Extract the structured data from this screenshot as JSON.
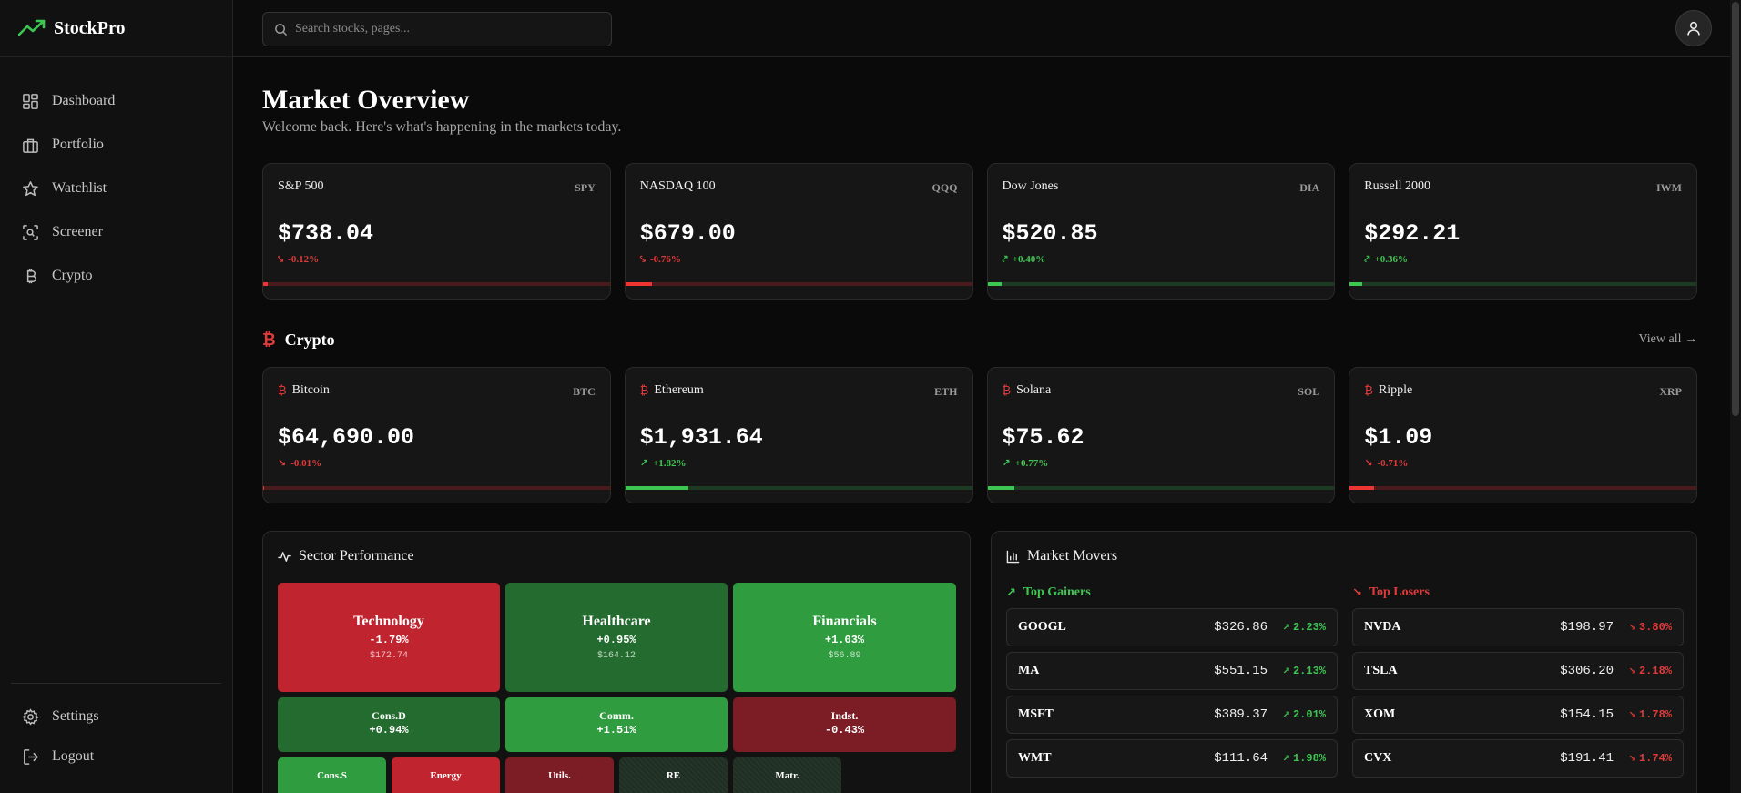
{
  "brand": {
    "name": "StockPro",
    "accent": "#3ec653"
  },
  "sidebar": {
    "items": [
      {
        "label": "Dashboard",
        "icon": "dashboard-icon"
      },
      {
        "label": "Portfolio",
        "icon": "briefcase-icon"
      },
      {
        "label": "Watchlist",
        "icon": "star-icon"
      },
      {
        "label": "Screener",
        "icon": "scan-icon"
      },
      {
        "label": "Crypto",
        "icon": "bitcoin-icon"
      }
    ],
    "bottom": [
      {
        "label": "Settings",
        "icon": "gear-icon"
      },
      {
        "label": "Logout",
        "icon": "logout-icon"
      }
    ]
  },
  "search": {
    "placeholder": "Search stocks, pages..."
  },
  "page": {
    "title": "Market Overview",
    "subtitle": "Welcome back. Here's what's happening in the markets today."
  },
  "indices": [
    {
      "name": "S&P 500",
      "symbol": "SPY",
      "price": "$738.04",
      "change": "-0.12%",
      "direction": "down",
      "bar_level": 0.012
    },
    {
      "name": "NASDAQ 100",
      "symbol": "QQQ",
      "price": "$679.00",
      "change": "-0.76%",
      "direction": "down",
      "bar_level": 0.076
    },
    {
      "name": "Dow Jones",
      "symbol": "DIA",
      "price": "$520.85",
      "change": "+0.40%",
      "direction": "up",
      "bar_level": 0.04
    },
    {
      "name": "Russell 2000",
      "symbol": "IWM",
      "price": "$292.21",
      "change": "+0.36%",
      "direction": "up",
      "bar_level": 0.036
    }
  ],
  "crypto": {
    "title": "Crypto",
    "view_all": "View all →",
    "items": [
      {
        "name": "Bitcoin",
        "symbol": "BTC",
        "price": "$64,690.00",
        "change": "-0.01%",
        "direction": "down",
        "bar_level": 0.001
      },
      {
        "name": "Ethereum",
        "symbol": "ETH",
        "price": "$1,931.64",
        "change": "+1.82%",
        "direction": "up",
        "bar_level": 0.182
      },
      {
        "name": "Solana",
        "symbol": "SOL",
        "price": "$75.62",
        "change": "+0.77%",
        "direction": "up",
        "bar_level": 0.077
      },
      {
        "name": "Ripple",
        "symbol": "XRP",
        "price": "$1.09",
        "change": "-0.71%",
        "direction": "down",
        "bar_level": 0.071
      }
    ]
  },
  "sectors": {
    "title": "Sector Performance",
    "tiles": [
      {
        "name": "Technology",
        "change": "-1.79%",
        "price": "$172.74",
        "color": "#c0252f"
      },
      {
        "name": "Healthcare",
        "change": "+0.95%",
        "price": "$164.12",
        "color": "#236b2e"
      },
      {
        "name": "Financials",
        "change": "+1.03%",
        "price": "$56.89",
        "color": "#2f9c3f"
      },
      {
        "name": "Cons.D",
        "change": "+0.94%",
        "color": "#236b2e"
      },
      {
        "name": "Comm.",
        "change": "+1.51%",
        "color": "#2f9c3f"
      },
      {
        "name": "Indst.",
        "change": "-0.43%",
        "color": "#7c1c24"
      },
      {
        "name": "Cons.S",
        "color": "#2f9c3f"
      },
      {
        "name": "Energy",
        "color": "#c0252f"
      },
      {
        "name": "Utils.",
        "color": "#7c1c24"
      },
      {
        "name": "RE",
        "color": "#1f2e22"
      },
      {
        "name": "Matr.",
        "color": "#1f2e22"
      }
    ]
  },
  "movers": {
    "title": "Market Movers",
    "gainers_label": "Top Gainers",
    "losers_label": "Top Losers",
    "gainers": [
      {
        "symbol": "GOOGL",
        "price": "$326.86",
        "change": "2.23%"
      },
      {
        "symbol": "MA",
        "price": "$551.15",
        "change": "2.13%"
      },
      {
        "symbol": "MSFT",
        "price": "$389.37",
        "change": "2.01%"
      },
      {
        "symbol": "WMT",
        "price": "$111.64",
        "change": "1.98%"
      }
    ],
    "losers": [
      {
        "symbol": "NVDA",
        "price": "$198.97",
        "change": "3.80%"
      },
      {
        "symbol": "TSLA",
        "price": "$306.20",
        "change": "2.18%"
      },
      {
        "symbol": "XOM",
        "price": "$154.15",
        "change": "1.78%"
      },
      {
        "symbol": "CVX",
        "price": "$191.41",
        "change": "1.74%"
      }
    ]
  }
}
